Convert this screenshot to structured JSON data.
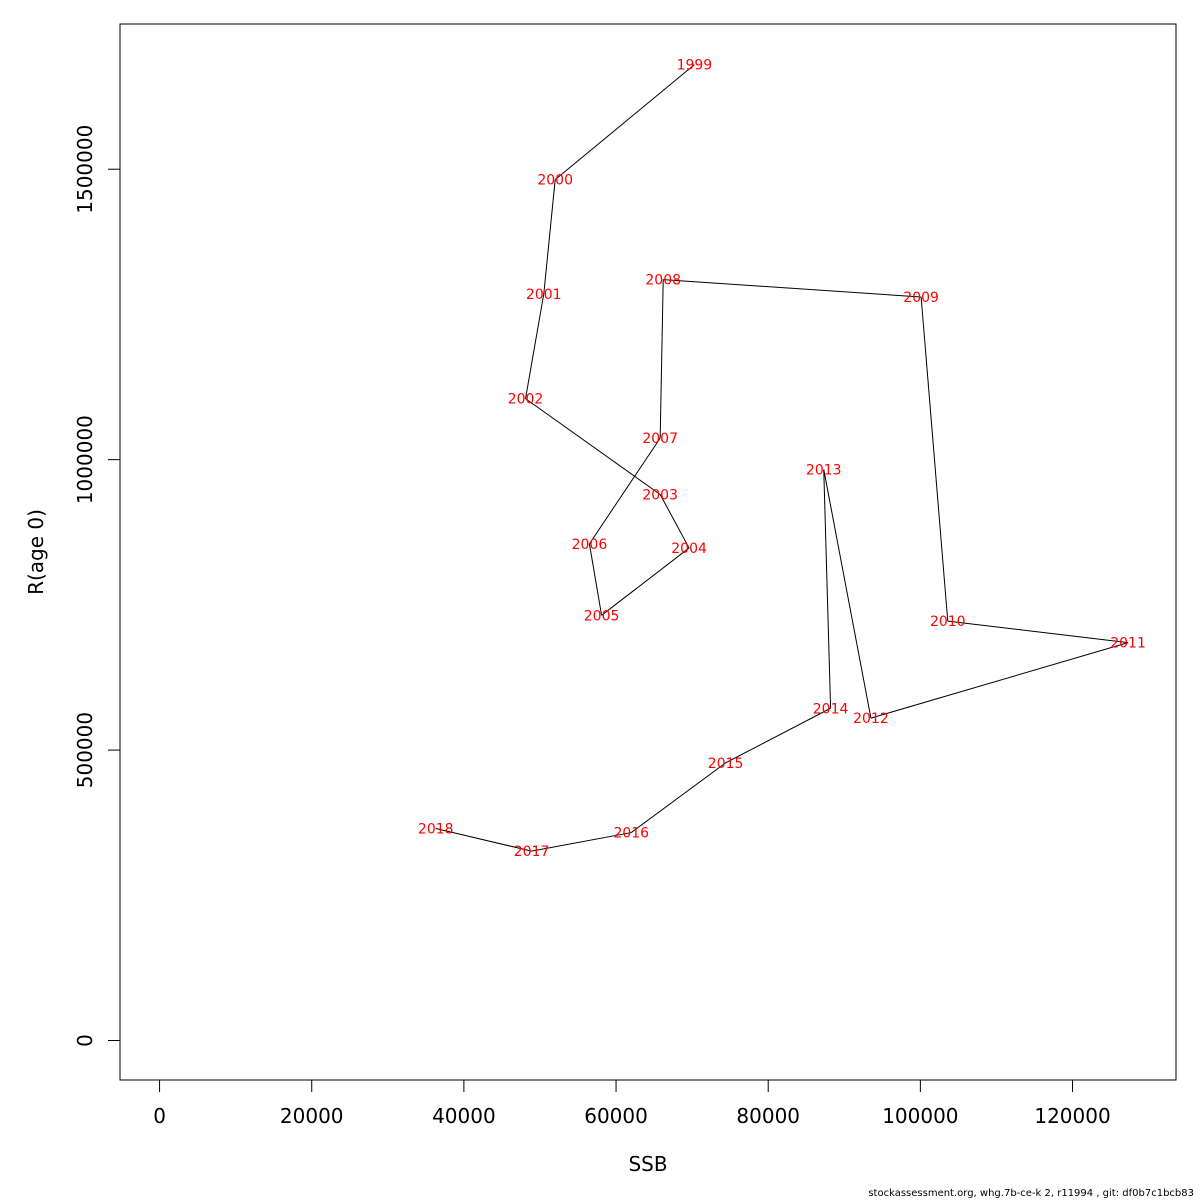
{
  "chart_data": {
    "type": "line",
    "xlabel": "SSB",
    "ylabel": "R(age 0)",
    "xlim": [
      -5200,
      133600
    ],
    "ylim": [
      -68000,
      1750000
    ],
    "x_ticks": [
      "0",
      "20000",
      "40000",
      "60000",
      "80000",
      "100000",
      "120000"
    ],
    "x_tick_values": [
      0,
      20000,
      40000,
      60000,
      80000,
      100000,
      120000
    ],
    "y_ticks": [
      "0",
      "500000",
      "1000000",
      "1500000"
    ],
    "y_tick_values": [
      0,
      500000,
      1000000,
      1500000
    ],
    "grid": false,
    "line_color": "#000000",
    "label_color": "#ff0000",
    "points": [
      {
        "label": "1999",
        "x": 70300,
        "y": 1680000
      },
      {
        "label": "2000",
        "x": 52000,
        "y": 1482000
      },
      {
        "label": "2001",
        "x": 50500,
        "y": 1285000
      },
      {
        "label": "2002",
        "x": 48100,
        "y": 1105000
      },
      {
        "label": "2003",
        "x": 65800,
        "y": 940000
      },
      {
        "label": "2004",
        "x": 69600,
        "y": 848000
      },
      {
        "label": "2005",
        "x": 58100,
        "y": 732000
      },
      {
        "label": "2006",
        "x": 56500,
        "y": 855000
      },
      {
        "label": "2007",
        "x": 65800,
        "y": 1037000
      },
      {
        "label": "2008",
        "x": 66200,
        "y": 1310000
      },
      {
        "label": "2009",
        "x": 100100,
        "y": 1280000
      },
      {
        "label": "2010",
        "x": 103600,
        "y": 722000
      },
      {
        "label": "2011",
        "x": 127300,
        "y": 685000
      },
      {
        "label": "2012",
        "x": 93500,
        "y": 555000
      },
      {
        "label": "2013",
        "x": 87300,
        "y": 983000
      },
      {
        "label": "2014",
        "x": 88200,
        "y": 572000
      },
      {
        "label": "2015",
        "x": 74400,
        "y": 478000
      },
      {
        "label": "2016",
        "x": 62000,
        "y": 358000
      },
      {
        "label": "2017",
        "x": 48900,
        "y": 326000
      },
      {
        "label": "2018",
        "x": 36300,
        "y": 365000
      }
    ]
  },
  "footer": "stockassessment.org, whg.7b-ce-k  2, r11994 , git: df0b7c1bcb83"
}
